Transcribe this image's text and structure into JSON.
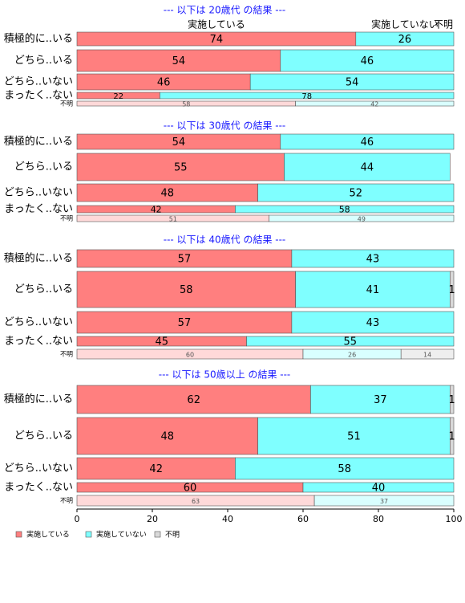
{
  "chart_data": {
    "type": "stacked-bar",
    "series": [
      {
        "name": "実施している",
        "color": "#ff7f7f",
        "light_color": "#ffd9d9"
      },
      {
        "name": "実施していない",
        "color": "#7fffff",
        "light_color": "#d9ffff"
      },
      {
        "name": "不明",
        "color": "#d9d9d9",
        "light_color": "#eeeeee"
      }
    ],
    "xlim": [
      0,
      100
    ],
    "xticks": [
      0,
      20,
      40,
      60,
      80,
      100
    ],
    "panels": [
      {
        "title": "--- 以下は 20歳代 の結果 ---",
        "categories": [
          "積極的に..いる",
          "どちら..いる",
          "どちら..いない",
          "まったく..ない",
          "不明"
        ],
        "values": [
          [
            74,
            26,
            0
          ],
          [
            54,
            46,
            0
          ],
          [
            46,
            54,
            0
          ],
          [
            22,
            78,
            0
          ],
          [
            58,
            42,
            0
          ]
        ]
      },
      {
        "title": "--- 以下は 30歳代 の結果 ---",
        "categories": [
          "積極的に..いる",
          "どちら..いる",
          "どちら..いない",
          "まったく..ない",
          "不明"
        ],
        "values": [
          [
            54,
            46,
            0
          ],
          [
            55,
            44,
            0
          ],
          [
            48,
            52,
            0
          ],
          [
            42,
            58,
            0
          ],
          [
            51,
            49,
            0
          ]
        ]
      },
      {
        "title": "--- 以下は 40歳代 の結果 ---",
        "categories": [
          "積極的に..いる",
          "どちら..いる",
          "どちら..いない",
          "まったく..ない",
          "不明"
        ],
        "values": [
          [
            57,
            43,
            0
          ],
          [
            58,
            41,
            1
          ],
          [
            57,
            43,
            0
          ],
          [
            45,
            55,
            0
          ],
          [
            60,
            26,
            14
          ]
        ]
      },
      {
        "title": "--- 以下は 50歳以上 の結果 ---",
        "categories": [
          "積極的に..いる",
          "どちら..いる",
          "どちら..いない",
          "まったく..ない",
          "不明"
        ],
        "values": [
          [
            62,
            37,
            1
          ],
          [
            48,
            51,
            1
          ],
          [
            42,
            58,
            0
          ],
          [
            60,
            40,
            0
          ],
          [
            63,
            37,
            0
          ]
        ]
      }
    ]
  }
}
